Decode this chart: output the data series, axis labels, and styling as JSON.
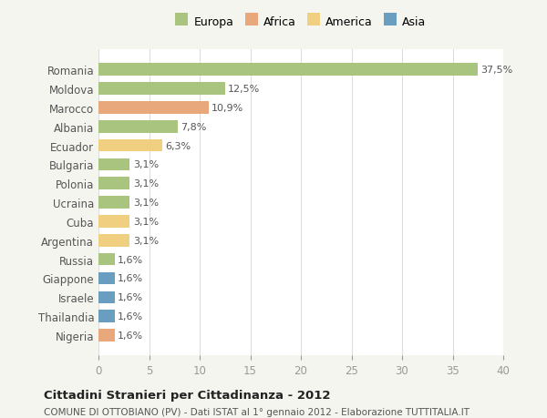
{
  "countries": [
    "Romania",
    "Moldova",
    "Marocco",
    "Albania",
    "Ecuador",
    "Bulgaria",
    "Polonia",
    "Ucraina",
    "Cuba",
    "Argentina",
    "Russia",
    "Giappone",
    "Israele",
    "Thailandia",
    "Nigeria"
  ],
  "values": [
    37.5,
    12.5,
    10.9,
    7.8,
    6.3,
    3.1,
    3.1,
    3.1,
    3.1,
    3.1,
    1.6,
    1.6,
    1.6,
    1.6,
    1.6
  ],
  "labels": [
    "37,5%",
    "12,5%",
    "10,9%",
    "7,8%",
    "6,3%",
    "3,1%",
    "3,1%",
    "3,1%",
    "3,1%",
    "3,1%",
    "1,6%",
    "1,6%",
    "1,6%",
    "1,6%",
    "1,6%"
  ],
  "continents": [
    "Europa",
    "Europa",
    "Africa",
    "Europa",
    "America",
    "Europa",
    "Europa",
    "Europa",
    "America",
    "America",
    "Europa",
    "Asia",
    "Asia",
    "Asia",
    "Africa"
  ],
  "continent_colors": {
    "Europa": "#a8c47f",
    "Africa": "#e8a87c",
    "America": "#f0d080",
    "Asia": "#6a9ec0"
  },
  "legend_entries": [
    "Europa",
    "Africa",
    "America",
    "Asia"
  ],
  "legend_colors": [
    "#a8c47f",
    "#e8a87c",
    "#f0d080",
    "#6a9ec0"
  ],
  "title": "Cittadini Stranieri per Cittadinanza - 2012",
  "subtitle": "COMUNE DI OTTOBIANO (PV) - Dati ISTAT al 1° gennaio 2012 - Elaborazione TUTTITALIA.IT",
  "xlim": [
    0,
    40
  ],
  "xticks": [
    0,
    5,
    10,
    15,
    20,
    25,
    30,
    35,
    40
  ],
  "background_color": "#f5f5f0",
  "bar_background": "#ffffff",
  "grid_color": "#dddddd"
}
